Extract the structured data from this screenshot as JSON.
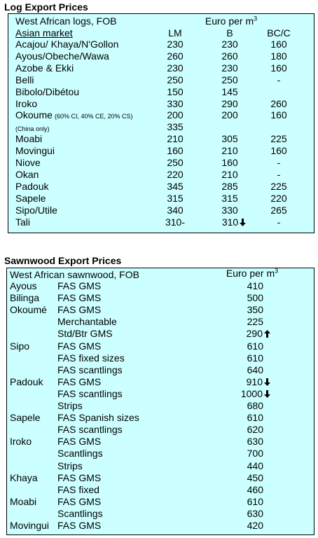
{
  "log_prices": {
    "title": "Log Export Prices",
    "header": {
      "label": "West African logs, FOB",
      "unit": "Euro per m",
      "unit_sup": "3"
    },
    "subheader": {
      "market": "Asian market",
      "columns": [
        "LM",
        "B",
        "BC/C"
      ]
    },
    "rows": [
      {
        "name": "Acajou/ Khaya/N'Gollon",
        "cells": [
          "230",
          "230",
          "160"
        ]
      },
      {
        "name": "Ayous/Obeche/Wawa",
        "cells": [
          "260",
          "260",
          "180"
        ]
      },
      {
        "name": "Azobe & Ekki",
        "cells": [
          "230",
          "230",
          "160"
        ]
      },
      {
        "name": "Belli",
        "cells": [
          "250",
          "250",
          "-"
        ]
      },
      {
        "name": "Bibolo/Dibétou",
        "cells": [
          "150",
          "145"
        ]
      },
      {
        "name": "Iroko",
        "cells": [
          "330",
          "290",
          "260"
        ]
      },
      {
        "name": "Okoume",
        "note": "(60% CI, 40% CE, 20% CS)",
        "cells": [
          "200",
          "200",
          "160"
        ]
      },
      {
        "note": "(China only)",
        "cells": [
          "335"
        ]
      },
      {
        "name": "Moabi",
        "cells": [
          "210",
          "305",
          "225"
        ]
      },
      {
        "name": "Movingui",
        "cells": [
          "160",
          "210",
          "160"
        ]
      },
      {
        "name": "Niove",
        "cells": [
          "250",
          "160",
          "-"
        ]
      },
      {
        "name": "Okan",
        "cells": [
          "220",
          "210",
          "-"
        ]
      },
      {
        "name": "Padouk",
        "cells": [
          "345",
          "285",
          "225"
        ]
      },
      {
        "name": "Sapele",
        "cells": [
          "315",
          "315",
          "220"
        ]
      },
      {
        "name": "Sipo/Utile",
        "cells": [
          "340",
          "330",
          "265"
        ]
      },
      {
        "name": "Tali",
        "cells": [
          "310-",
          "310",
          "-"
        ],
        "trend_b": "down"
      }
    ]
  },
  "sawnwood_prices": {
    "title": "Sawnwood Export Prices",
    "header": {
      "label": "West African sawnwood, FOB",
      "unit": "Euro per m",
      "unit_sup": "3"
    },
    "rows": [
      {
        "species": "Ayous",
        "grade": "FAS GMS",
        "price": "410"
      },
      {
        "species": "Bilinga",
        "grade": "FAS GMS",
        "price": "500"
      },
      {
        "species": "Okoumé",
        "grade": "FAS GMS",
        "price": "350"
      },
      {
        "grade": "Merchantable",
        "price": "225"
      },
      {
        "grade": "Std/Btr GMS",
        "price": "290",
        "trend": "up"
      },
      {
        "species": "Sipo",
        "grade": "FAS GMS",
        "price": "610"
      },
      {
        "grade": "FAS fixed sizes",
        "price": "610"
      },
      {
        "grade": "FAS scantlings",
        "price": "640"
      },
      {
        "species": "Padouk",
        "grade": "FAS GMS",
        "price": "910",
        "trend": "down"
      },
      {
        "grade": "FAS scantlings",
        "price": "1000",
        "trend": "down"
      },
      {
        "grade": "Strips",
        "price": "680"
      },
      {
        "species": "Sapele",
        "grade": "FAS Spanish sizes",
        "price": "610"
      },
      {
        "grade": "FAS scantlings",
        "price": "620"
      },
      {
        "species": "Iroko",
        "grade": "FAS GMS",
        "price": "630"
      },
      {
        "grade": "Scantlings",
        "price": "700"
      },
      {
        "grade": "Strips",
        "price": "440"
      },
      {
        "species": "Khaya",
        "grade": "FAS GMS",
        "price": "450"
      },
      {
        "grade": "FAS fixed",
        "price": "460"
      },
      {
        "species": "Moabi",
        "grade": "FAS GMS",
        "price": "610"
      },
      {
        "grade": "Scantlings",
        "price": "630"
      },
      {
        "species": "Movingui",
        "grade": "FAS GMS",
        "price": "420"
      }
    ]
  }
}
